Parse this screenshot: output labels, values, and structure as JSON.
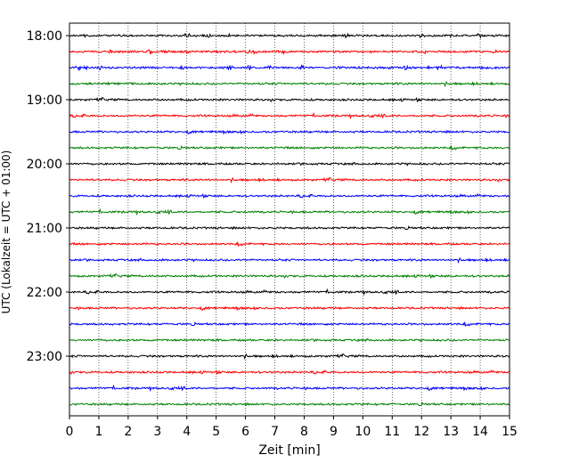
{
  "chart_data": {
    "type": "line",
    "title": "",
    "xlabel": "Zeit  [min]",
    "ylabel": "UTC (Lokalzeit = UTC + 01:00)",
    "xlim": [
      0,
      15
    ],
    "x_ticks": [
      0,
      1,
      2,
      3,
      4,
      5,
      6,
      7,
      8,
      9,
      10,
      11,
      12,
      13,
      14,
      15
    ],
    "x_tick_labels": [
      "0",
      "1",
      "2",
      "3",
      "4",
      "5",
      "6",
      "7",
      "8",
      "9",
      "10",
      "11",
      "12",
      "13",
      "14",
      "15"
    ],
    "x_grid": "dotted vertical lines at each minute",
    "y_tick_labels": [
      "18:00",
      "19:00",
      "20:00",
      "21:00",
      "22:00",
      "23:00"
    ],
    "y_tick_rows": [
      0,
      4,
      8,
      12,
      16,
      20
    ],
    "trace_count": 24,
    "trace_interval_minutes": 15,
    "first_trace_start": "18:00",
    "trace_color_cycle": [
      "#000000",
      "#ff0000",
      "#0000ff",
      "#008000"
    ],
    "legend": "none"
  }
}
